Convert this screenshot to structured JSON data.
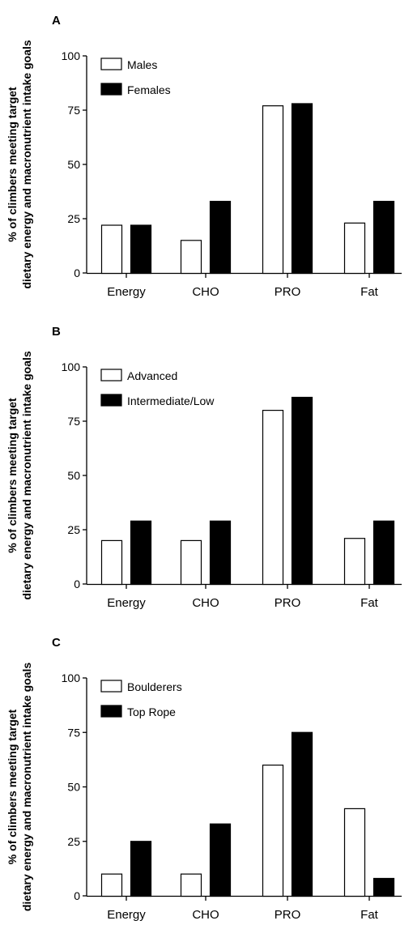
{
  "chart_data": [
    {
      "type": "bar",
      "panel_label": "A",
      "categories": [
        "Energy",
        "CHO",
        "PRO",
        "Fat"
      ],
      "series": [
        {
          "name": "Males",
          "values": [
            22,
            15,
            77,
            23
          ],
          "fill": "#ffffff"
        },
        {
          "name": "Females",
          "values": [
            22,
            33,
            78,
            33
          ],
          "fill": "#000000"
        }
      ],
      "ylabel_lines": [
        "% of climbers meeting target",
        "dietary energy and macronutrient intake goals"
      ],
      "ylim": [
        0,
        100
      ],
      "yticks": [
        0,
        25,
        50,
        75,
        100
      ],
      "legend_position": "top-left"
    },
    {
      "type": "bar",
      "panel_label": "B",
      "categories": [
        "Energy",
        "CHO",
        "PRO",
        "Fat"
      ],
      "series": [
        {
          "name": "Advanced",
          "values": [
            20,
            20,
            80,
            21
          ],
          "fill": "#ffffff"
        },
        {
          "name": "Intermediate/Low",
          "values": [
            29,
            29,
            86,
            29
          ],
          "fill": "#000000"
        }
      ],
      "ylabel_lines": [
        "% of climbers meeting target",
        "dietary energy and macronutrient intake goals"
      ],
      "ylim": [
        0,
        100
      ],
      "yticks": [
        0,
        25,
        50,
        75,
        100
      ],
      "legend_position": "top-left"
    },
    {
      "type": "bar",
      "panel_label": "C",
      "categories": [
        "Energy",
        "CHO",
        "PRO",
        "Fat"
      ],
      "series": [
        {
          "name": "Boulderers",
          "values": [
            10,
            10,
            60,
            40
          ],
          "fill": "#ffffff"
        },
        {
          "name": "Top Rope",
          "values": [
            25,
            33,
            75,
            8
          ],
          "fill": "#000000"
        }
      ],
      "ylabel_lines": [
        "% of climbers meeting target",
        "dietary energy and macronutrient intake goals"
      ],
      "ylim": [
        0,
        100
      ],
      "yticks": [
        0,
        25,
        50,
        75,
        100
      ],
      "legend_position": "top-left"
    }
  ]
}
